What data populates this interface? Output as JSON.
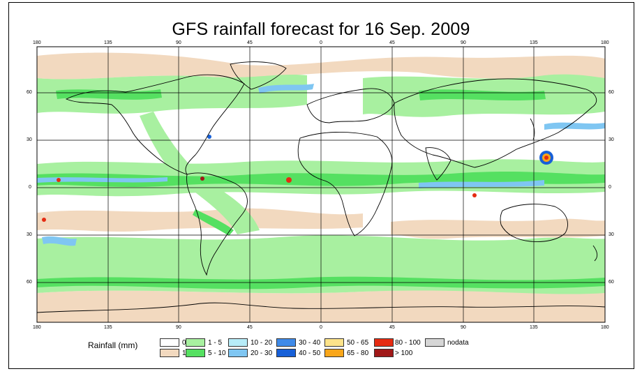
{
  "title": "GFS rainfall forecast for 16 Sep. 2009",
  "axes": {
    "top_lon_labels": [
      "180",
      "135",
      "90",
      "45",
      "0",
      "45",
      "90",
      "135",
      "180"
    ],
    "bottom_lon_labels": [
      "180",
      "135",
      "90",
      "45",
      "0",
      "45",
      "90",
      "135",
      "180"
    ],
    "left_lat_labels": [
      "60",
      "30",
      "0",
      "30",
      "60"
    ],
    "right_lat_labels": [
      "60",
      "30",
      "0",
      "30",
      "60"
    ]
  },
  "legend": {
    "title": "Rainfall (mm)",
    "items": [
      {
        "label": "0",
        "color": "#ffffff"
      },
      {
        "label": "1",
        "color": "#f2d9bf"
      },
      {
        "label": "1 - 5",
        "color": "#a8f0a0"
      },
      {
        "label": "5 - 10",
        "color": "#55e061"
      },
      {
        "label": "10 - 20",
        "color": "#b7ecf8"
      },
      {
        "label": "20 - 30",
        "color": "#7fc6f2"
      },
      {
        "label": "30 - 40",
        "color": "#3f8ae8"
      },
      {
        "label": "40 - 50",
        "color": "#1760d8"
      },
      {
        "label": "50 - 65",
        "color": "#fde38a"
      },
      {
        "label": "65 - 80",
        "color": "#f9a61a"
      },
      {
        "label": "80 - 100",
        "color": "#e52b12"
      },
      {
        "label": "> 100",
        "color": "#a01818"
      },
      {
        "label": "nodata",
        "color": "#d6d6d6"
      }
    ]
  }
}
